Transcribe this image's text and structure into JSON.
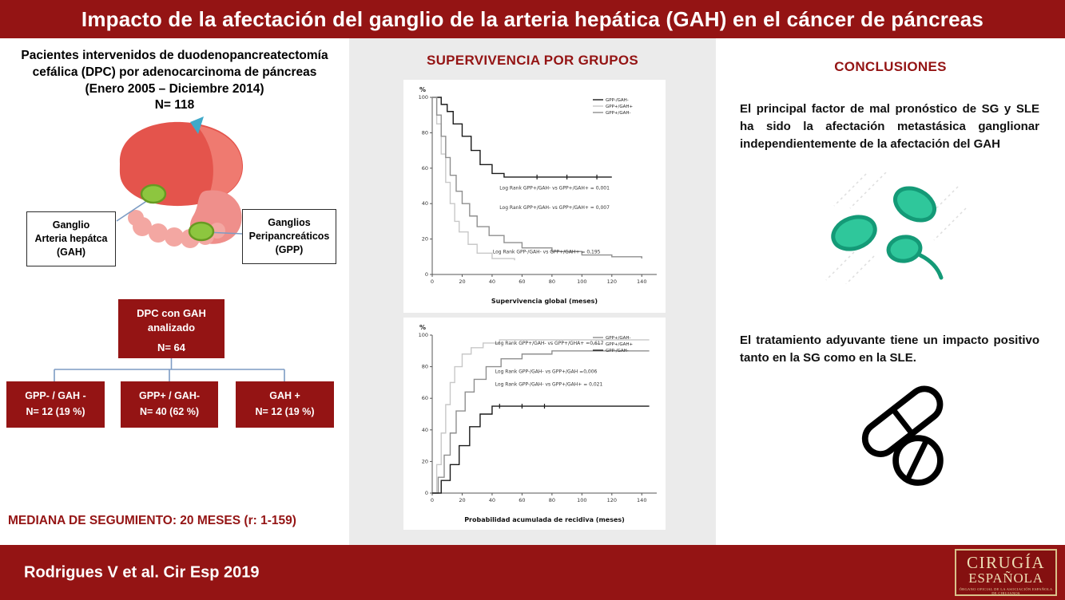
{
  "colors": {
    "maroon": "#941414",
    "maroon_dark": "#841010",
    "panel_gray": "#ebebeb",
    "node_green": "#8dc63f",
    "node_green_dark": "#679a22",
    "cell_teal": "#2fc79b",
    "cell_teal_dark": "#149a77",
    "connector_blue": "#7d9cc4",
    "logo_cream": "#eedfb5"
  },
  "header": {
    "title": "Impacto de la afectación del ganglio de la arteria hepática (GAH) en el cáncer de páncreas"
  },
  "left": {
    "intro": [
      "Pacientes intervenidos de duodenopancreatectomía",
      "cefálica (DPC) por adenocarcinoma de  páncreas",
      "(Enero 2005 – Diciembre 2014)",
      "N= 118"
    ],
    "gah_box": [
      "Ganglio",
      "Arteria hepátca",
      "(GAH)"
    ],
    "gpp_box": [
      "Ganglios",
      "Peripancreáticos",
      "(GPP)"
    ],
    "flow_root": [
      "DPC con GAH",
      "analizado",
      "N= 64"
    ],
    "flow_children": [
      [
        "GPP- / GAH -",
        "N= 12 (19 %)"
      ],
      [
        "GPP+ / GAH-",
        "N= 40 (62 %)"
      ],
      [
        "GAH +",
        "N= 12 (19 %)"
      ]
    ],
    "median": "MEDIANA DE SEGUMIENTO: 20 MESES (r: 1-159)"
  },
  "middle": {
    "title": "SUPERVIVENCIA POR GRUPOS"
  },
  "right": {
    "title": "CONCLUSIONES",
    "paragraph1": "El principal factor de mal pronóstico de SG y SLE ha sido la afectación metastásica ganglionar independientemente de la afectación del GAH",
    "paragraph2": "El tratamiento adyuvante tiene un impacto positivo tanto en la SG como en la SLE."
  },
  "footer": {
    "citation": "Rodrigues V et al. Cir Esp 2019",
    "logo_line1": "CIRUGÍA",
    "logo_line2": "ESPAÑOLA",
    "logo_tagline": "ÓRGANO OFICIAL DE LA ASOCIACIÓN ESPAÑOLA DE CIRUJANOS"
  },
  "chart_data": [
    {
      "type": "line",
      "subtype": "kaplan-meier",
      "title": "Supervivencia global",
      "ylabel": "%",
      "xlabel": "Supervivencia global (meses)",
      "xlim": [
        0,
        150
      ],
      "ylim": [
        0,
        100
      ],
      "xticks": [
        0,
        20,
        40,
        60,
        80,
        100,
        120,
        140
      ],
      "yticks": [
        0,
        20,
        40,
        60,
        80,
        100
      ],
      "grid": false,
      "legend_position": "top-right",
      "series": [
        {
          "name": "GPP-/GAH-",
          "color": "#1a1a1a",
          "x": [
            0,
            6,
            10,
            14,
            20,
            26,
            32,
            40,
            48,
            120
          ],
          "y": [
            100,
            96,
            92,
            85,
            78,
            70,
            62,
            57,
            55,
            55
          ],
          "censors_x": [
            70,
            90,
            110
          ],
          "censors_y": [
            55,
            55,
            55
          ]
        },
        {
          "name": "GPP+/GAH+",
          "color": "#c8c8c8",
          "x": [
            0,
            3,
            6,
            9,
            12,
            15,
            18,
            24,
            30,
            40,
            55
          ],
          "y": [
            100,
            85,
            68,
            52,
            40,
            30,
            24,
            17,
            12,
            9,
            8
          ]
        },
        {
          "name": "GPP+/GAH-",
          "color": "#8f8f8f",
          "x": [
            0,
            3,
            6,
            9,
            12,
            16,
            20,
            25,
            30,
            38,
            48,
            60,
            80,
            100,
            120,
            140
          ],
          "y": [
            100,
            90,
            78,
            66,
            56,
            47,
            40,
            33,
            27,
            22,
            18,
            15,
            13,
            11,
            10,
            9
          ]
        }
      ],
      "annotations": [
        {
          "text": "Log Rank GPP+/GAH-  vs GPP+/GAH+ = 0,001",
          "x": 0.3,
          "y": 0.52
        },
        {
          "text": "Log Rank GPP+/GAH-  vs GPP+/GAH+ = 0,007",
          "x": 0.3,
          "y": 0.63
        },
        {
          "text": "Log Rank GPP-/GAH-  vs GPP+/GAH+ = 0,195",
          "x": 0.27,
          "y": 0.88
        }
      ]
    },
    {
      "type": "line",
      "subtype": "kaplan-meier",
      "title": "Probabilidad acumulada de recidiva",
      "ylabel": "%",
      "xlabel": "Probabilidad acumulada de recidiva (meses)",
      "xlim": [
        0,
        150
      ],
      "ylim": [
        0,
        100
      ],
      "xticks": [
        0,
        20,
        40,
        60,
        80,
        100,
        120,
        140
      ],
      "yticks": [
        0,
        20,
        40,
        60,
        80,
        100
      ],
      "grid": false,
      "legend_position": "top-right",
      "series": [
        {
          "name": "GPP+/GAH-",
          "color": "#8f8f8f",
          "x": [
            0,
            4,
            8,
            12,
            16,
            22,
            28,
            36,
            46,
            60,
            80,
            145
          ],
          "y": [
            0,
            10,
            24,
            38,
            52,
            64,
            72,
            80,
            85,
            88,
            90,
            90
          ]
        },
        {
          "name": "GPP+/GAH+",
          "color": "#c8c8c8",
          "x": [
            0,
            3,
            6,
            9,
            12,
            15,
            20,
            26,
            34,
            45,
            60,
            145
          ],
          "y": [
            0,
            18,
            38,
            56,
            70,
            80,
            88,
            92,
            95,
            97,
            97,
            97
          ]
        },
        {
          "name": "GPP-/GAH-",
          "color": "#1a1a1a",
          "x": [
            0,
            6,
            12,
            18,
            25,
            32,
            40,
            145
          ],
          "y": [
            0,
            8,
            18,
            30,
            42,
            50,
            55,
            55
          ],
          "censors_x": [
            45,
            60,
            75
          ],
          "censors_y": [
            55,
            55,
            55
          ]
        }
      ],
      "annotations": [
        {
          "text": "Log Rank GPP+/GAH-  vs GPP+/GHA+ =0,617",
          "x": 0.28,
          "y": 0.06
        },
        {
          "text": "Log Rank GPP-/GAH-  vs GPP+/GAH =0,006",
          "x": 0.28,
          "y": 0.24
        },
        {
          "text": "Log Rank GPP-/GAH-  vs GPP+/GAH+ = 0,021",
          "x": 0.28,
          "y": 0.32
        }
      ]
    }
  ]
}
